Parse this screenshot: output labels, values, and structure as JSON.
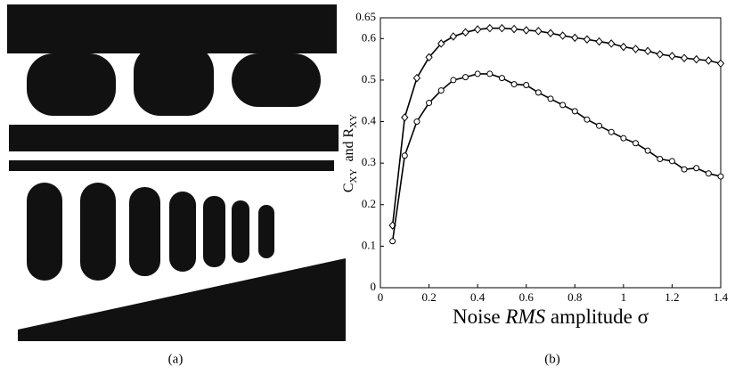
{
  "captions": [
    "(a)",
    "(b)"
  ],
  "chart_data": {
    "type": "line",
    "xlabel_parts": [
      "Noise ",
      "RMS",
      " amplitude σ"
    ],
    "ylabel_parts": [
      "C",
      "XY",
      "  and R",
      "XY"
    ],
    "x": [
      0.05,
      0.1,
      0.15,
      0.2,
      0.25,
      0.3,
      0.35,
      0.4,
      0.45,
      0.5,
      0.55,
      0.6,
      0.65,
      0.7,
      0.75,
      0.8,
      0.85,
      0.9,
      0.95,
      1.0,
      1.05,
      1.1,
      1.15,
      1.2,
      1.25,
      1.3,
      1.35,
      1.4
    ],
    "series": [
      {
        "color": "#000000",
        "marker": "diamond",
        "values": [
          0.15,
          0.41,
          0.505,
          0.555,
          0.588,
          0.605,
          0.615,
          0.622,
          0.625,
          0.625,
          0.623,
          0.62,
          0.618,
          0.613,
          0.607,
          0.602,
          0.598,
          0.593,
          0.588,
          0.58,
          0.575,
          0.57,
          0.562,
          0.558,
          0.553,
          0.55,
          0.547,
          0.54
        ]
      },
      {
        "color": "#000000",
        "marker": "circle",
        "values": [
          0.112,
          0.318,
          0.4,
          0.445,
          0.475,
          0.5,
          0.507,
          0.515,
          0.515,
          0.505,
          0.49,
          0.488,
          0.47,
          0.455,
          0.44,
          0.425,
          0.405,
          0.39,
          0.375,
          0.36,
          0.348,
          0.33,
          0.31,
          0.305,
          0.285,
          0.288,
          0.275,
          0.268
        ]
      }
    ],
    "xlim": [
      0,
      1.4
    ],
    "xticks": [
      0,
      0.2,
      0.4,
      0.6,
      0.8,
      1,
      1.2,
      1.4
    ],
    "ylim": [
      0,
      0.65
    ],
    "yticks": [
      0,
      0.1,
      0.2,
      0.3,
      0.4,
      0.5,
      0.6,
      0.65
    ]
  }
}
